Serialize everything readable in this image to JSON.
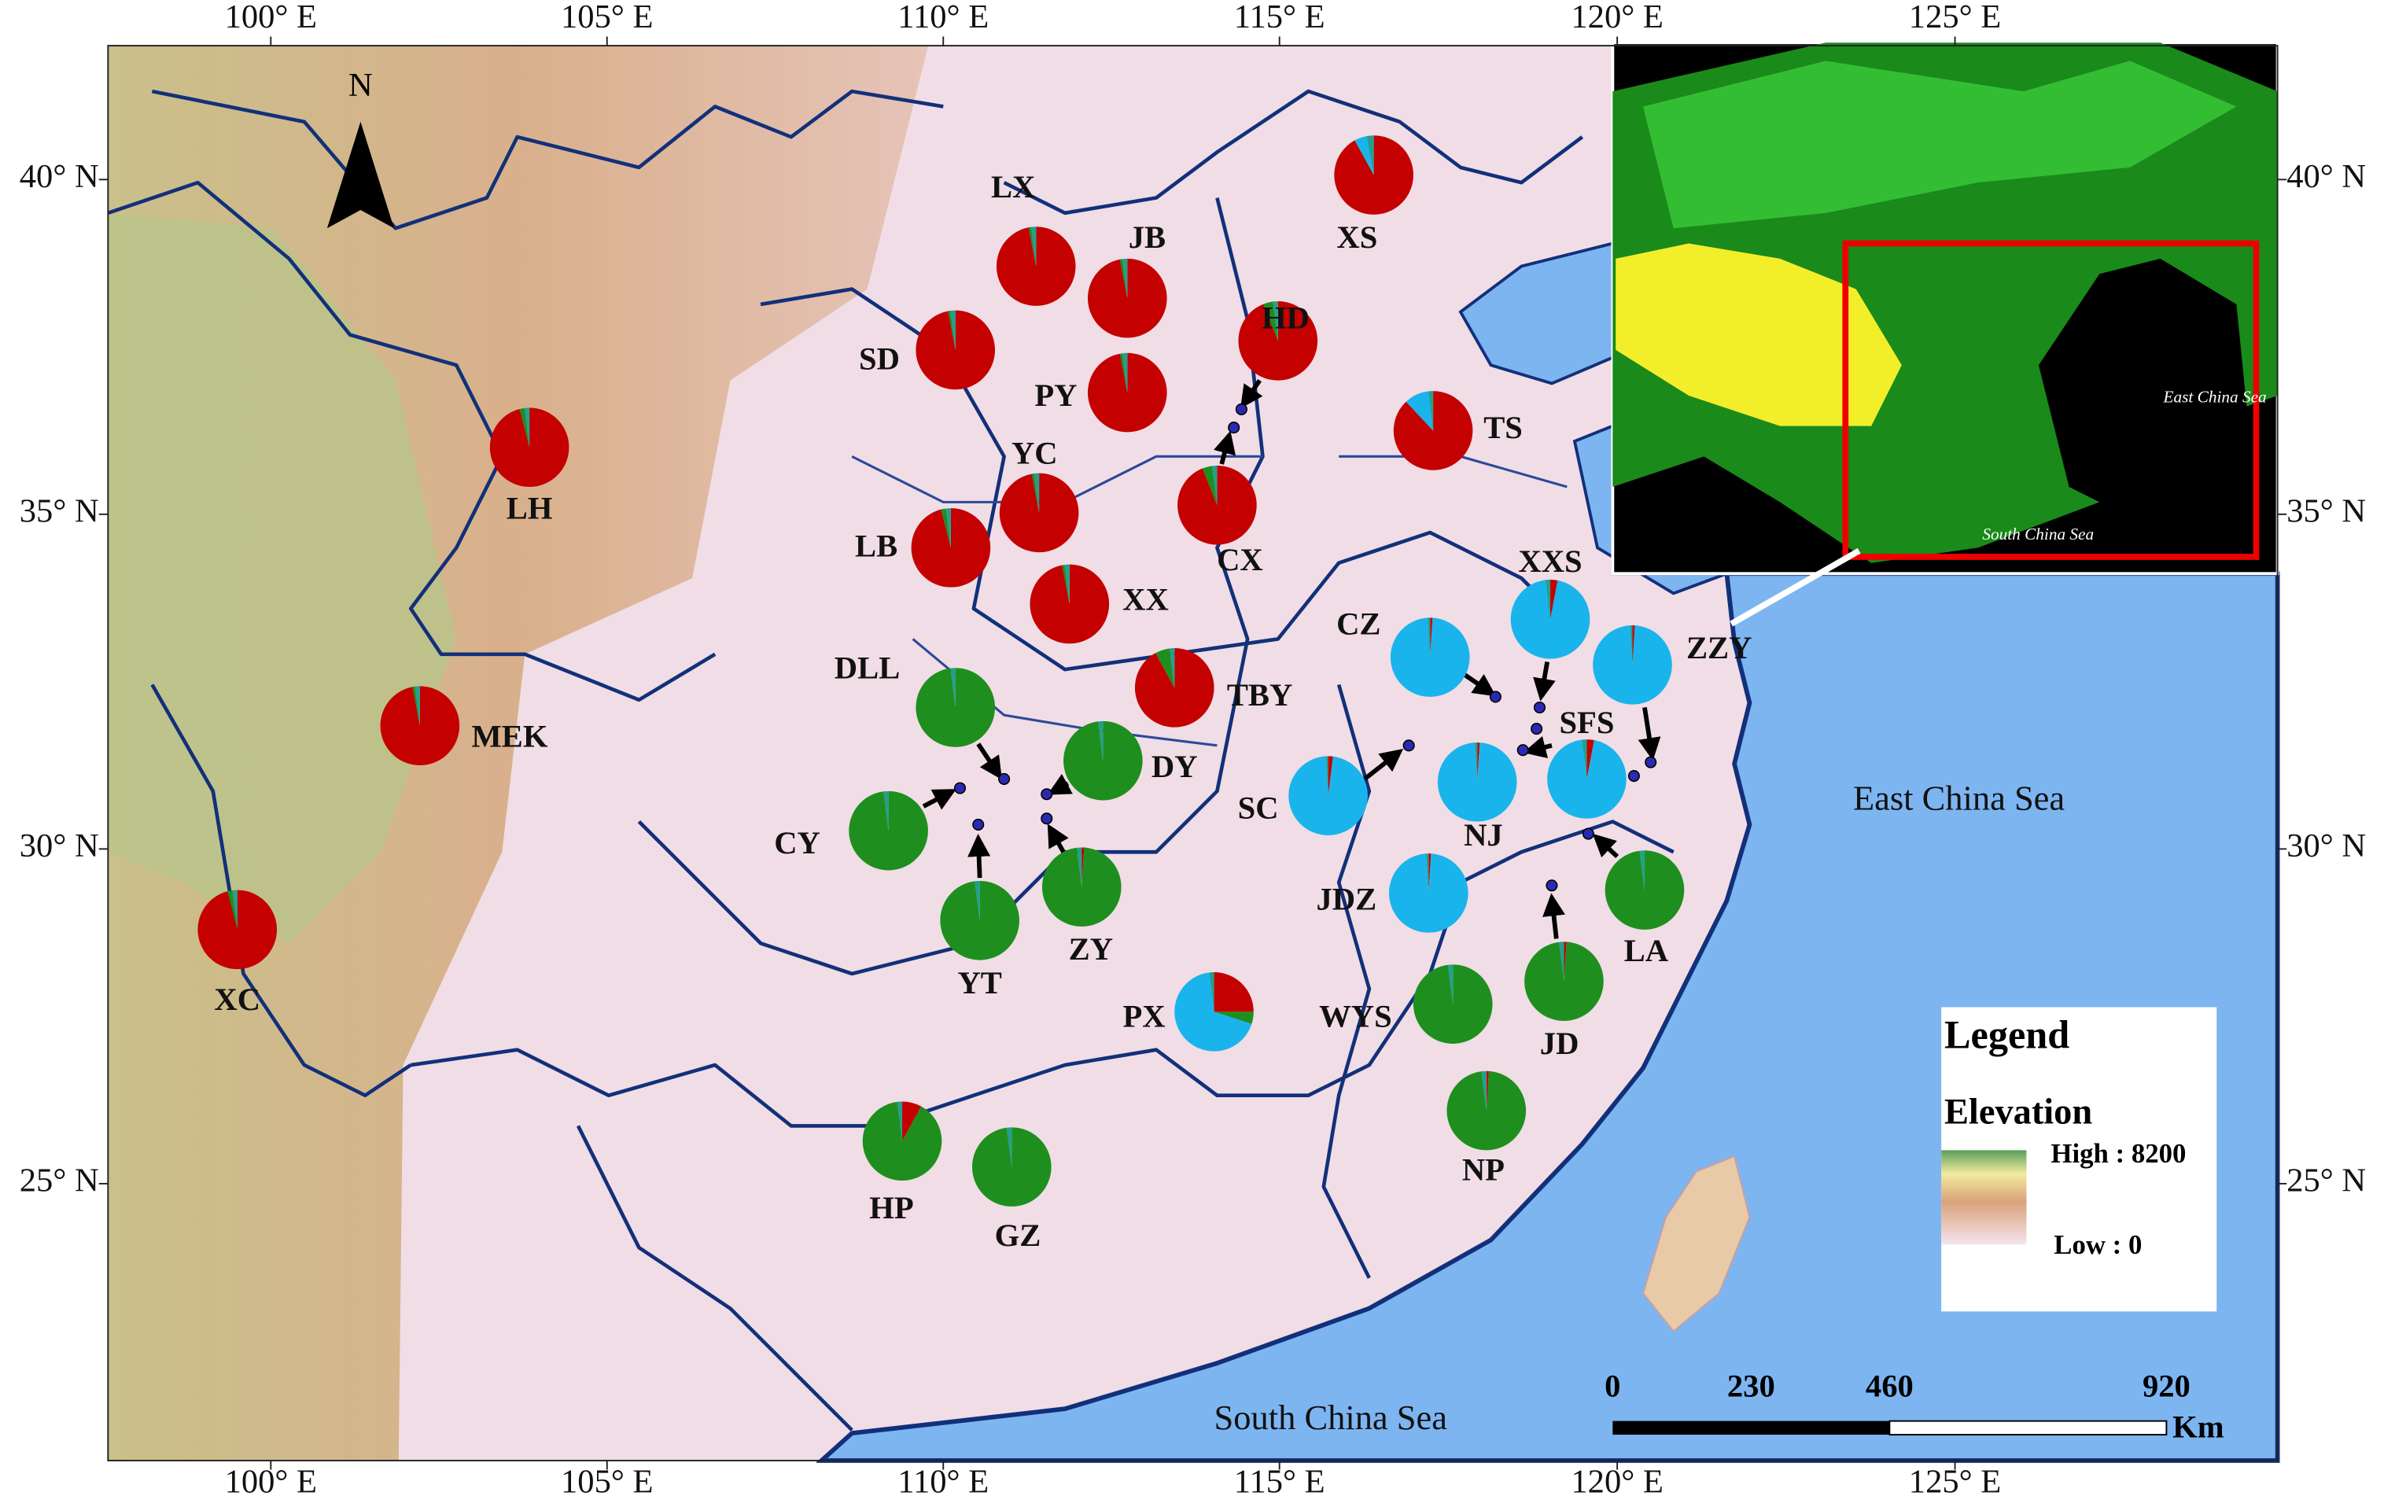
{
  "lon_labels": [
    "100° E",
    "105° E",
    "110° E",
    "115° E",
    "120° E",
    "125° E"
  ],
  "lat_labels": [
    "40° N",
    "35° N",
    "30° N",
    "25° N"
  ],
  "north": "N",
  "pie_colors": [
    "#c40000",
    "#1e8f1e",
    "#19b4ec",
    "#22a08f"
  ],
  "sites": [
    {
      "label": "XS",
      "values": [
        92,
        0,
        5,
        3
      ]
    },
    {
      "label": "LX",
      "values": [
        97,
        1,
        0,
        2
      ]
    },
    {
      "label": "JB",
      "values": [
        97,
        1,
        0,
        2
      ]
    },
    {
      "label": "HD",
      "values": [
        94,
        4,
        0,
        2
      ]
    },
    {
      "label": "SD",
      "values": [
        97,
        1,
        0,
        2
      ]
    },
    {
      "label": "PY",
      "values": [
        97,
        1,
        0,
        2
      ]
    },
    {
      "label": "TS",
      "values": [
        88,
        0,
        10,
        2
      ]
    },
    {
      "label": "LH",
      "values": [
        96,
        2,
        0,
        2
      ]
    },
    {
      "label": "YC",
      "values": [
        97,
        1,
        0,
        2
      ]
    },
    {
      "label": "CX",
      "values": [
        94,
        4,
        0,
        2
      ]
    },
    {
      "label": "LB",
      "values": [
        96,
        2,
        0,
        2
      ]
    },
    {
      "label": "XX",
      "values": [
        97,
        1,
        0,
        2
      ]
    },
    {
      "label": "XXS",
      "values": [
        3,
        0,
        95,
        2
      ]
    },
    {
      "label": "CZ",
      "values": [
        1,
        0,
        98,
        1
      ]
    },
    {
      "label": "ZZY",
      "values": [
        1,
        0,
        98,
        1
      ]
    },
    {
      "label": "DLL",
      "values": [
        0,
        98,
        0,
        2
      ]
    },
    {
      "label": "TBY",
      "values": [
        92,
        6,
        0,
        2
      ]
    },
    {
      "label": "MEK",
      "values": [
        97,
        1,
        0,
        2
      ]
    },
    {
      "label": "DY",
      "values": [
        0,
        98,
        0,
        2
      ]
    },
    {
      "label": "SFS",
      "values": [
        3,
        0,
        95,
        2
      ]
    },
    {
      "label": "SC",
      "values": [
        2,
        0,
        97,
        1
      ]
    },
    {
      "label": "NJ",
      "values": [
        1,
        0,
        98,
        1
      ]
    },
    {
      "label": "CY",
      "values": [
        0,
        98,
        0,
        2
      ]
    },
    {
      "label": "ZY",
      "values": [
        1,
        97,
        0,
        2
      ]
    },
    {
      "label": "YT",
      "values": [
        0,
        98,
        0,
        2
      ]
    },
    {
      "label": "LA",
      "values": [
        0,
        98,
        0,
        2
      ]
    },
    {
      "label": "JDZ",
      "values": [
        1,
        0,
        98,
        1
      ]
    },
    {
      "label": "XC",
      "values": [
        96,
        2,
        0,
        2
      ]
    },
    {
      "label": "PX",
      "values": [
        25,
        5,
        68,
        2
      ]
    },
    {
      "label": "JD",
      "values": [
        1,
        97,
        0,
        2
      ]
    },
    {
      "label": "WYS",
      "values": [
        0,
        98,
        0,
        2
      ]
    },
    {
      "label": "NP",
      "values": [
        1,
        97,
        0,
        2
      ]
    },
    {
      "label": "HP",
      "values": [
        8,
        90,
        0,
        2
      ]
    },
    {
      "label": "GZ",
      "values": [
        0,
        98,
        0,
        2
      ]
    }
  ],
  "seas": [
    "East China Sea",
    "South China Sea"
  ],
  "inset": {
    "seas": [
      "East China Sea",
      "South China Sea"
    ]
  },
  "legend": {
    "title": "Legend",
    "subtitle": "Elevation",
    "high": "High : 8200",
    "low": "Low : 0"
  },
  "scale_bar": {
    "labels": [
      "0",
      "230",
      "460",
      "920"
    ],
    "unit": "Km"
  }
}
